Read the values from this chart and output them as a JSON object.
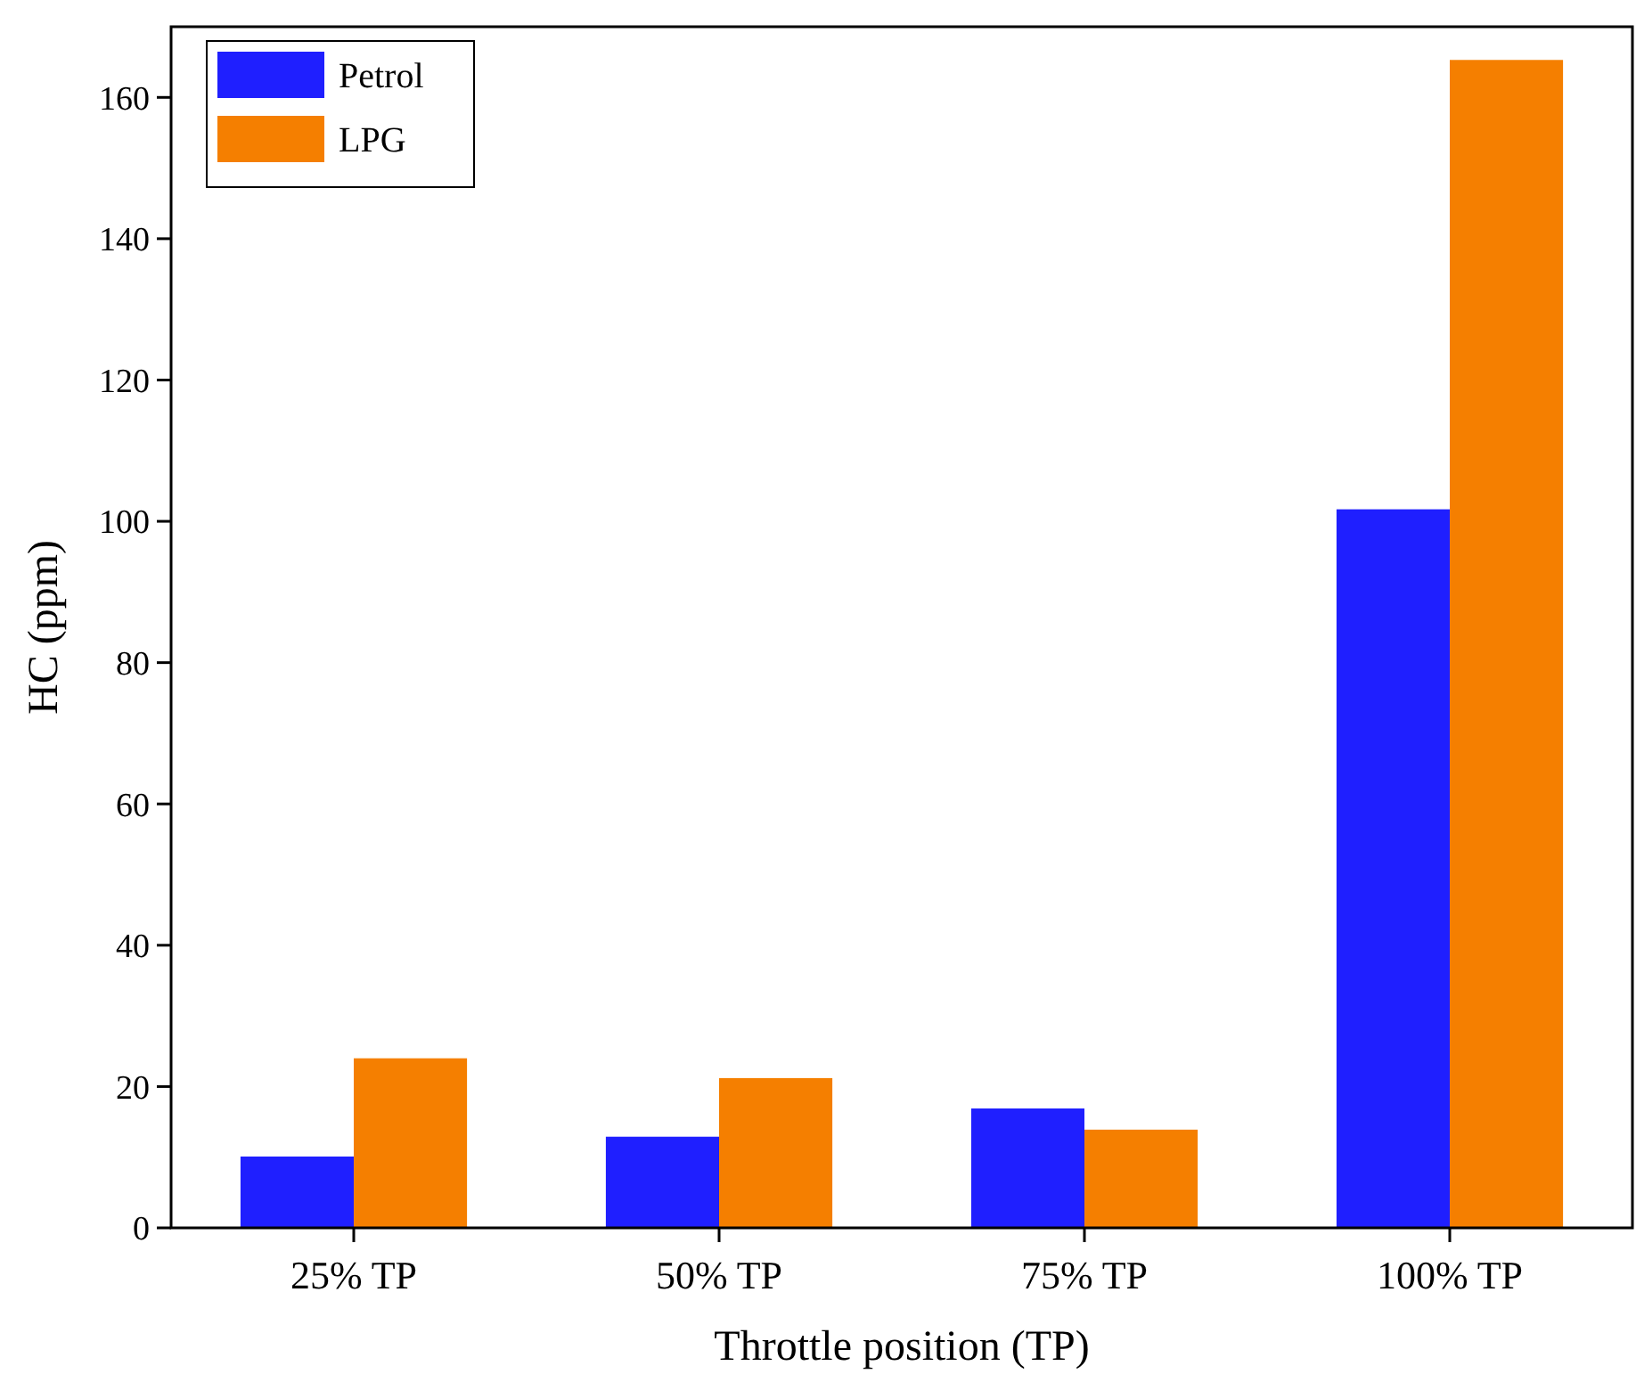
{
  "chart_data": {
    "type": "bar",
    "xlabel": "Throttle position (TP)",
    "ylabel": "HC (ppm)",
    "categories": [
      "25% TP",
      "50% TP",
      "75% TP",
      "100% TP"
    ],
    "series": [
      {
        "name": "Petrol",
        "color": "#1f1fff",
        "values": [
          10.1,
          12.9,
          16.9,
          101.7
        ]
      },
      {
        "name": "LPG",
        "color": "#f57f00",
        "values": [
          24.0,
          21.2,
          13.9,
          165.3
        ]
      }
    ],
    "ylim": [
      0,
      170
    ],
    "yticks": [
      0,
      20,
      40,
      60,
      80,
      100,
      120,
      140,
      160
    ],
    "legend": "top left"
  }
}
